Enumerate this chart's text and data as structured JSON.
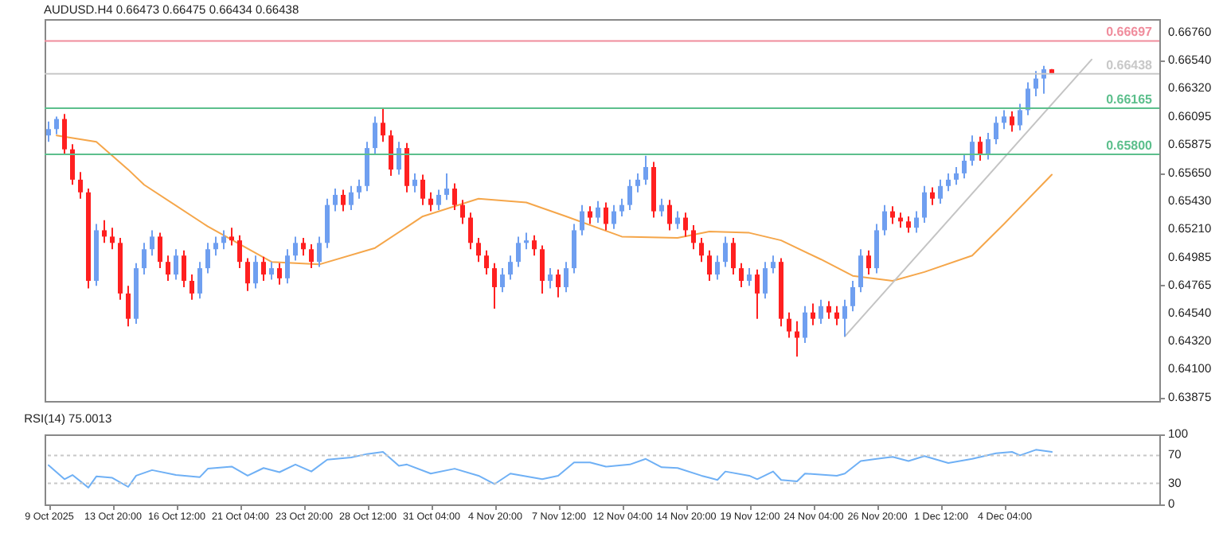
{
  "chart_data": [
    {
      "type": "candlestick",
      "title": "AUDUSD.H4 0.66473 0.66475 0.66434 0.66438",
      "ylim": [
        0.6385,
        0.6687
      ],
      "yticks": [
        {
          "value": 0.6676,
          "label": "0.66760"
        },
        {
          "value": 0.6654,
          "label": "0.66540"
        },
        {
          "value": 0.6632,
          "label": "0.66320"
        },
        {
          "value": 0.66095,
          "label": "0.66095"
        },
        {
          "value": 0.65875,
          "label": "0.65875"
        },
        {
          "value": 0.6565,
          "label": "0.65650"
        },
        {
          "value": 0.6543,
          "label": "0.65430"
        },
        {
          "value": 0.6521,
          "label": "0.65210"
        },
        {
          "value": 0.64985,
          "label": "0.64985"
        },
        {
          "value": 0.64765,
          "label": "0.64765"
        },
        {
          "value": 0.6454,
          "label": "0.64540"
        },
        {
          "value": 0.6432,
          "label": "0.64320"
        },
        {
          "value": 0.641,
          "label": "0.64100"
        },
        {
          "value": 0.63875,
          "label": "0.63875"
        }
      ],
      "tick_labels": "y",
      "categories": [
        null,
        null,
        null,
        null,
        null,
        null,
        null,
        null,
        null,
        null,
        null,
        null,
        null,
        null,
        null,
        null,
        null,
        null,
        null,
        null,
        null,
        null,
        null,
        null,
        null,
        null,
        null,
        null,
        null,
        null,
        null,
        null,
        null,
        null,
        null,
        null,
        null,
        null,
        null,
        null,
        null,
        null,
        null,
        null,
        null,
        null,
        null,
        null,
        null,
        null,
        null,
        null,
        null,
        null,
        null,
        null,
        null,
        null,
        null,
        null,
        null,
        null,
        null,
        null,
        null,
        null,
        null,
        null,
        null,
        null,
        null,
        null,
        null,
        null,
        null,
        null,
        null,
        null,
        null,
        null,
        null,
        null,
        null,
        null,
        null,
        null,
        null,
        null,
        null,
        null,
        null,
        null,
        null,
        null,
        null,
        null,
        null,
        null,
        null,
        null,
        null,
        null,
        null,
        null,
        null,
        null,
        null,
        null,
        null,
        null,
        null,
        null,
        null,
        null,
        null,
        null,
        null,
        null,
        null,
        null,
        null,
        null,
        null,
        null,
        null,
        null,
        null,
        null,
        null,
        null,
        null,
        null,
        null,
        null,
        null,
        null,
        null,
        null,
        null,
        null
      ],
      "ohlc": [
        [
          0.6595,
          0.6606,
          0.659,
          0.66
        ],
        [
          0.66,
          0.661,
          0.6596,
          0.6608
        ],
        [
          0.6608,
          0.6612,
          0.658,
          0.6584
        ],
        [
          0.6584,
          0.6588,
          0.6556,
          0.656
        ],
        [
          0.656,
          0.6566,
          0.6545,
          0.655
        ],
        [
          0.655,
          0.6553,
          0.6474,
          0.648
        ],
        [
          0.648,
          0.6525,
          0.6476,
          0.652
        ],
        [
          0.652,
          0.6528,
          0.651,
          0.6515
        ],
        [
          0.6515,
          0.6522,
          0.6505,
          0.651
        ],
        [
          0.651,
          0.6514,
          0.6465,
          0.647
        ],
        [
          0.647,
          0.6476,
          0.6444,
          0.645
        ],
        [
          0.645,
          0.6494,
          0.6446,
          0.649
        ],
        [
          0.649,
          0.651,
          0.6485,
          0.6505
        ],
        [
          0.6505,
          0.652,
          0.65,
          0.6515
        ],
        [
          0.6515,
          0.6518,
          0.649,
          0.6495
        ],
        [
          0.6495,
          0.65,
          0.648,
          0.6485
        ],
        [
          0.6485,
          0.6505,
          0.6481,
          0.65
        ],
        [
          0.65,
          0.6504,
          0.6475,
          0.648
        ],
        [
          0.648,
          0.6485,
          0.6465,
          0.647
        ],
        [
          0.647,
          0.6495,
          0.6466,
          0.649
        ],
        [
          0.649,
          0.651,
          0.6486,
          0.6505
        ],
        [
          0.6505,
          0.6515,
          0.65,
          0.651
        ],
        [
          0.651,
          0.652,
          0.6505,
          0.6515
        ],
        [
          0.6515,
          0.6522,
          0.6508,
          0.6512
        ],
        [
          0.6512,
          0.6516,
          0.649,
          0.6495
        ],
        [
          0.6495,
          0.6498,
          0.6472,
          0.6478
        ],
        [
          0.6478,
          0.65,
          0.6474,
          0.6495
        ],
        [
          0.6495,
          0.6499,
          0.648,
          0.6485
        ],
        [
          0.6485,
          0.6495,
          0.6481,
          0.649
        ],
        [
          0.649,
          0.6494,
          0.6477,
          0.6482
        ],
        [
          0.6482,
          0.6505,
          0.6478,
          0.65
        ],
        [
          0.65,
          0.6515,
          0.6496,
          0.651
        ],
        [
          0.651,
          0.6514,
          0.65,
          0.6505
        ],
        [
          0.6505,
          0.6509,
          0.649,
          0.6495
        ],
        [
          0.6495,
          0.6515,
          0.6491,
          0.651
        ],
        [
          0.651,
          0.6545,
          0.6506,
          0.654
        ],
        [
          0.654,
          0.6553,
          0.6535,
          0.6548
        ],
        [
          0.6548,
          0.6552,
          0.6535,
          0.654
        ],
        [
          0.654,
          0.6555,
          0.6536,
          0.655
        ],
        [
          0.655,
          0.656,
          0.6545,
          0.6555
        ],
        [
          0.6555,
          0.659,
          0.6551,
          0.6585
        ],
        [
          0.6585,
          0.661,
          0.658,
          0.6605
        ],
        [
          0.6605,
          0.6616,
          0.659,
          0.6595
        ],
        [
          0.6595,
          0.6599,
          0.6563,
          0.6568
        ],
        [
          0.6568,
          0.659,
          0.6564,
          0.6585
        ],
        [
          0.6585,
          0.6589,
          0.655,
          0.6555
        ],
        [
          0.6555,
          0.6565,
          0.655,
          0.656
        ],
        [
          0.656,
          0.6564,
          0.654,
          0.6545
        ],
        [
          0.6545,
          0.655,
          0.6535,
          0.654
        ],
        [
          0.654,
          0.6552,
          0.6536,
          0.6548
        ],
        [
          0.6548,
          0.6565,
          0.6544,
          0.6553
        ],
        [
          0.6553,
          0.6557,
          0.6536,
          0.654
        ],
        [
          0.654,
          0.6544,
          0.6525,
          0.653
        ],
        [
          0.653,
          0.6534,
          0.6505,
          0.651
        ],
        [
          0.651,
          0.6514,
          0.6495,
          0.65
        ],
        [
          0.65,
          0.6504,
          0.6485,
          0.649
        ],
        [
          0.649,
          0.6494,
          0.6458,
          0.6475
        ],
        [
          0.6475,
          0.649,
          0.6471,
          0.6485
        ],
        [
          0.6485,
          0.65,
          0.6481,
          0.6495
        ],
        [
          0.6495,
          0.6515,
          0.6491,
          0.651
        ],
        [
          0.651,
          0.6518,
          0.6505,
          0.6512
        ],
        [
          0.6512,
          0.6516,
          0.65,
          0.6505
        ],
        [
          0.6505,
          0.6508,
          0.647,
          0.648
        ],
        [
          0.648,
          0.649,
          0.6474,
          0.6485
        ],
        [
          0.6485,
          0.6489,
          0.6467,
          0.6475
        ],
        [
          0.6475,
          0.6495,
          0.6471,
          0.649
        ],
        [
          0.649,
          0.6525,
          0.6486,
          0.652
        ],
        [
          0.652,
          0.654,
          0.6516,
          0.6535
        ],
        [
          0.6535,
          0.6539,
          0.6525,
          0.653
        ],
        [
          0.653,
          0.6543,
          0.6526,
          0.6538
        ],
        [
          0.6538,
          0.6542,
          0.652,
          0.6525
        ],
        [
          0.6525,
          0.654,
          0.6521,
          0.6535
        ],
        [
          0.6535,
          0.6545,
          0.6531,
          0.654
        ],
        [
          0.654,
          0.656,
          0.6536,
          0.6555
        ],
        [
          0.6555,
          0.6565,
          0.655,
          0.656
        ],
        [
          0.656,
          0.6579,
          0.6556,
          0.657
        ],
        [
          0.657,
          0.6574,
          0.653,
          0.6535
        ],
        [
          0.6535,
          0.6545,
          0.6531,
          0.654
        ],
        [
          0.654,
          0.6544,
          0.652,
          0.6525
        ],
        [
          0.6525,
          0.6535,
          0.6521,
          0.653
        ],
        [
          0.653,
          0.6534,
          0.6515,
          0.652
        ],
        [
          0.652,
          0.6524,
          0.6505,
          0.651
        ],
        [
          0.651,
          0.6514,
          0.6495,
          0.65
        ],
        [
          0.65,
          0.6504,
          0.648,
          0.6485
        ],
        [
          0.6485,
          0.65,
          0.6481,
          0.6495
        ],
        [
          0.6495,
          0.6515,
          0.6491,
          0.651
        ],
        [
          0.651,
          0.6514,
          0.6485,
          0.649
        ],
        [
          0.649,
          0.6494,
          0.6475,
          0.648
        ],
        [
          0.648,
          0.649,
          0.6476,
          0.6485
        ],
        [
          0.6485,
          0.6489,
          0.645,
          0.647
        ],
        [
          0.647,
          0.6495,
          0.6466,
          0.649
        ],
        [
          0.649,
          0.65,
          0.6486,
          0.6495
        ],
        [
          0.6495,
          0.6498,
          0.6444,
          0.645
        ],
        [
          0.645,
          0.6455,
          0.6435,
          0.644
        ],
        [
          0.644,
          0.6448,
          0.642,
          0.6435
        ],
        [
          0.6435,
          0.646,
          0.6431,
          0.6455
        ],
        [
          0.6455,
          0.6462,
          0.6445,
          0.645
        ],
        [
          0.645,
          0.6465,
          0.6446,
          0.646
        ],
        [
          0.646,
          0.6464,
          0.645,
          0.6455
        ],
        [
          0.6455,
          0.646,
          0.6445,
          0.645
        ],
        [
          0.645,
          0.6465,
          0.6436,
          0.646
        ],
        [
          0.646,
          0.648,
          0.6456,
          0.6475
        ],
        [
          0.6475,
          0.6505,
          0.6471,
          0.65
        ],
        [
          0.65,
          0.6504,
          0.6485,
          0.649
        ],
        [
          0.649,
          0.6525,
          0.6486,
          0.652
        ],
        [
          0.652,
          0.654,
          0.6516,
          0.6535
        ],
        [
          0.6535,
          0.6539,
          0.6525,
          0.653
        ],
        [
          0.653,
          0.6534,
          0.6522,
          0.6527
        ],
        [
          0.6527,
          0.6531,
          0.6518,
          0.6522
        ],
        [
          0.6522,
          0.6535,
          0.6518,
          0.653
        ],
        [
          0.653,
          0.6555,
          0.6526,
          0.655
        ],
        [
          0.655,
          0.6554,
          0.654,
          0.6545
        ],
        [
          0.6545,
          0.656,
          0.6541,
          0.6555
        ],
        [
          0.6555,
          0.6565,
          0.6551,
          0.656
        ],
        [
          0.656,
          0.657,
          0.6556,
          0.6565
        ],
        [
          0.6565,
          0.658,
          0.6561,
          0.6575
        ],
        [
          0.6575,
          0.6595,
          0.6571,
          0.659
        ],
        [
          0.659,
          0.6594,
          0.6575,
          0.658
        ],
        [
          0.658,
          0.6597,
          0.6576,
          0.6592
        ],
        [
          0.6592,
          0.661,
          0.6588,
          0.6605
        ],
        [
          0.6605,
          0.6615,
          0.66,
          0.661
        ],
        [
          0.661,
          0.6614,
          0.6598,
          0.6603
        ],
        [
          0.6603,
          0.662,
          0.6599,
          0.6615
        ],
        [
          0.6615,
          0.6637,
          0.6611,
          0.6632
        ],
        [
          0.6632,
          0.6646,
          0.6626,
          0.664
        ],
        [
          0.664,
          0.665,
          0.6628,
          0.66473
        ],
        [
          0.66473,
          0.66475,
          0.66434,
          0.66438
        ],
        null,
        null,
        null,
        null,
        null,
        null,
        null,
        null,
        null,
        null,
        null,
        null,
        null
      ],
      "colors": [
        "#6f9ff0",
        "#6f9ff0",
        "#ff2020",
        "#ff2020",
        "#ff2020",
        "#ff2020",
        "#6f9ff0",
        "#ff2020",
        "#ff2020",
        "#ff2020",
        "#ff2020",
        "#6f9ff0",
        "#6f9ff0",
        "#6f9ff0",
        "#ff2020",
        "#ff2020",
        "#6f9ff0",
        "#ff2020",
        "#ff2020",
        "#6f9ff0",
        "#6f9ff0",
        "#6f9ff0",
        "#6f9ff0",
        "#ff2020",
        "#ff2020",
        "#ff2020",
        "#6f9ff0",
        "#ff2020",
        "#6f9ff0",
        "#ff2020",
        "#6f9ff0",
        "#6f9ff0",
        "#ff2020",
        "#ff2020",
        "#6f9ff0",
        "#6f9ff0",
        "#6f9ff0",
        "#ff2020",
        "#6f9ff0",
        "#6f9ff0",
        "#6f9ff0",
        "#6f9ff0",
        "#ff2020",
        "#ff2020",
        "#6f9ff0",
        "#ff2020",
        "#6f9ff0",
        "#ff2020",
        "#ff2020",
        "#6f9ff0",
        "#6f9ff0",
        "#ff2020",
        "#ff2020",
        "#ff2020",
        "#ff2020",
        "#ff2020",
        "#ff2020",
        "#6f9ff0",
        "#6f9ff0",
        "#6f9ff0",
        "#6f9ff0",
        "#ff2020",
        "#ff2020",
        "#6f9ff0",
        "#ff2020",
        "#6f9ff0",
        "#6f9ff0",
        "#6f9ff0",
        "#ff2020",
        "#6f9ff0",
        "#ff2020",
        "#6f9ff0",
        "#6f9ff0",
        "#6f9ff0",
        "#6f9ff0",
        "#6f9ff0",
        "#ff2020",
        "#6f9ff0",
        "#ff2020",
        "#6f9ff0",
        "#ff2020",
        "#ff2020",
        "#ff2020",
        "#ff2020",
        "#6f9ff0",
        "#6f9ff0",
        "#ff2020",
        "#ff2020",
        "#6f9ff0",
        "#ff2020",
        "#6f9ff0",
        "#6f9ff0",
        "#ff2020",
        "#ff2020",
        "#ff2020",
        "#6f9ff0",
        "#ff2020",
        "#6f9ff0",
        "#ff2020",
        "#ff2020",
        "#6f9ff0",
        "#6f9ff0",
        "#6f9ff0",
        "#ff2020",
        "#6f9ff0",
        "#6f9ff0",
        "#ff2020",
        "#ff2020",
        "#ff2020",
        "#6f9ff0",
        "#6f9ff0",
        "#ff2020",
        "#6f9ff0",
        "#6f9ff0",
        "#6f9ff0",
        "#6f9ff0",
        "#6f9ff0",
        "#ff2020",
        "#6f9ff0",
        "#6f9ff0",
        "#6f9ff0",
        "#ff2020",
        "#6f9ff0",
        "#6f9ff0",
        "#6f9ff0",
        "#6f9ff0",
        "#ff2020",
        null,
        null,
        null,
        null,
        null,
        null,
        null,
        null,
        null,
        null,
        null,
        null,
        null
      ],
      "series": [
        {
          "type": "line",
          "color": "#f5a64a",
          "values": [
            null,
            0.6595,
            null,
            null,
            null,
            null,
            0.659,
            null,
            null,
            null,
            0.6568,
            null,
            0.6556,
            null,
            null,
            null,
            null,
            null,
            null,
            null,
            0.6523,
            null,
            null,
            null,
            null,
            null,
            null,
            null,
            0.6495,
            null,
            null,
            null,
            null,
            null,
            0.6493,
            null,
            null,
            null,
            null,
            null,
            null,
            0.6506,
            null,
            null,
            null,
            null,
            null,
            0.6531,
            null,
            null,
            null,
            null,
            null,
            null,
            0.6545,
            null,
            null,
            null,
            null,
            null,
            0.6542,
            null,
            null,
            null,
            null,
            0.6531,
            null,
            null,
            null,
            null,
            null,
            null,
            0.6515,
            null,
            null,
            null,
            null,
            null,
            null,
            0.6514,
            null,
            null,
            null,
            0.6519,
            null,
            null,
            null,
            null,
            0.6518,
            null,
            null,
            null,
            0.6512,
            null,
            null,
            null,
            null,
            0.6497,
            null,
            null,
            null,
            0.6484,
            null,
            null,
            null,
            null,
            0.648,
            null,
            null,
            null,
            0.6487,
            null,
            null,
            null,
            null,
            null,
            0.65,
            null,
            null,
            null,
            0.6525,
            null,
            null,
            null,
            null,
            null,
            0.6564,
            null,
            null,
            null,
            null,
            null,
            null,
            null,
            null,
            null,
            null,
            null,
            null,
            null
          ]
        },
        {
          "type": "line",
          "color": "#c4c4c4",
          "values": [
            null,
            null,
            null,
            null,
            null,
            null,
            null,
            null,
            null,
            null,
            null,
            null,
            null,
            null,
            null,
            null,
            null,
            null,
            null,
            null,
            null,
            null,
            null,
            null,
            null,
            null,
            null,
            null,
            null,
            null,
            null,
            null,
            null,
            null,
            null,
            null,
            null,
            null,
            null,
            null,
            null,
            null,
            null,
            null,
            null,
            null,
            null,
            null,
            null,
            null,
            null,
            null,
            null,
            null,
            null,
            null,
            null,
            null,
            null,
            null,
            null,
            null,
            null,
            null,
            null,
            null,
            null,
            null,
            null,
            null,
            null,
            null,
            null,
            null,
            null,
            null,
            null,
            null,
            null,
            null,
            null,
            null,
            null,
            null,
            null,
            null,
            null,
            null,
            null,
            null,
            null,
            null,
            null,
            null,
            null,
            null,
            null,
            null,
            null,
            null,
            0.6436,
            null,
            null,
            null,
            null,
            null,
            null,
            null,
            null,
            null,
            null,
            null,
            null,
            null,
            null,
            null,
            null,
            null,
            null,
            null,
            null,
            null,
            null,
            null,
            null,
            null,
            null,
            null,
            null,
            null,
            null,
            0.6655,
            null,
            null,
            null,
            null,
            null,
            null,
            null,
            null
          ]
        }
      ],
      "ref_lines": [
        {
          "axis": "y",
          "value": 0.66697,
          "label": "0.66697",
          "color": "#f08c9c"
        },
        {
          "axis": "y",
          "value": 0.66438,
          "label": "0.66438",
          "color": "#c8c8c8"
        },
        {
          "axis": "y",
          "value": 0.66165,
          "label": "0.66165",
          "color": "#5cbf8c"
        },
        {
          "axis": "y",
          "value": 0.658,
          "label": "0.65800",
          "color": "#5cbf8c"
        }
      ]
    },
    {
      "type": "line",
      "title": "RSI(14) 75.0013",
      "color": "#6fb0f5",
      "ylim": [
        0,
        100
      ],
      "yticks": [
        100,
        70,
        30,
        0
      ],
      "categories": [
        "9 Oct 2025",
        null,
        null,
        null,
        null,
        null,
        null,
        null,
        "13 Oct 20:00",
        null,
        null,
        null,
        null,
        null,
        null,
        null,
        "16 Oct 12:00",
        null,
        null,
        null,
        null,
        null,
        null,
        null,
        "21 Oct 04:00",
        null,
        null,
        null,
        null,
        null,
        null,
        null,
        "23 Oct 20:00",
        null,
        null,
        null,
        null,
        null,
        null,
        null,
        "28 Oct 12:00",
        null,
        null,
        null,
        null,
        null,
        null,
        null,
        "31 Oct 04:00",
        null,
        null,
        null,
        null,
        null,
        null,
        null,
        "4 Nov 20:00",
        null,
        null,
        null,
        null,
        null,
        null,
        null,
        "7 Nov 12:00",
        null,
        null,
        null,
        null,
        null,
        null,
        null,
        "12 Nov 04:00",
        null,
        null,
        null,
        null,
        null,
        null,
        null,
        "14 Nov 20:00",
        null,
        null,
        null,
        null,
        null,
        null,
        null,
        "19 Nov 12:00",
        null,
        null,
        null,
        null,
        null,
        null,
        null,
        "24 Nov 04:00",
        null,
        null,
        null,
        null,
        null,
        null,
        null,
        "26 Nov 20:00",
        null,
        null,
        null,
        null,
        null,
        null,
        null,
        "1 Dec 12:00",
        null,
        null,
        null,
        null,
        null,
        null,
        null,
        "4 Dec 04:00",
        null,
        null,
        null,
        null,
        null,
        null,
        null,
        null,
        null,
        null,
        null,
        null,
        null,
        null,
        null,
        null,
        null,
        null,
        null
      ],
      "values": [
        56,
        null,
        36,
        42,
        null,
        24,
        40,
        null,
        38,
        null,
        25,
        41,
        null,
        49,
        null,
        null,
        42,
        null,
        null,
        39,
        51,
        null,
        null,
        54,
        null,
        41,
        null,
        52,
        null,
        46,
        null,
        57,
        null,
        47,
        null,
        64,
        null,
        null,
        67,
        null,
        72,
        null,
        75,
        null,
        55,
        57,
        null,
        null,
        44,
        null,
        null,
        51,
        null,
        null,
        41,
        null,
        29,
        null,
        44,
        null,
        null,
        null,
        36,
        null,
        41,
        null,
        60,
        null,
        60,
        null,
        54,
        null,
        null,
        57,
        null,
        65,
        null,
        53,
        null,
        52,
        null,
        null,
        41,
        38,
        35,
        47,
        null,
        null,
        41,
        36,
        null,
        47,
        35,
        null,
        33,
        44,
        null,
        null,
        null,
        41,
        44,
        null,
        62,
        null,
        65,
        null,
        68,
        null,
        62,
        null,
        69,
        null,
        null,
        59,
        null,
        null,
        65,
        null,
        null,
        73,
        null,
        75,
        70,
        null,
        78,
        null,
        75,
        null,
        null,
        null,
        null,
        null,
        null,
        null,
        null,
        null,
        null,
        null,
        null,
        null
      ],
      "ref_lines": [
        {
          "axis": "y",
          "value": 70,
          "color": "#c8c8c8",
          "line_style": "dotted"
        },
        {
          "axis": "y",
          "value": 30,
          "color": "#c8c8c8",
          "line_style": "dotted"
        }
      ]
    }
  ]
}
